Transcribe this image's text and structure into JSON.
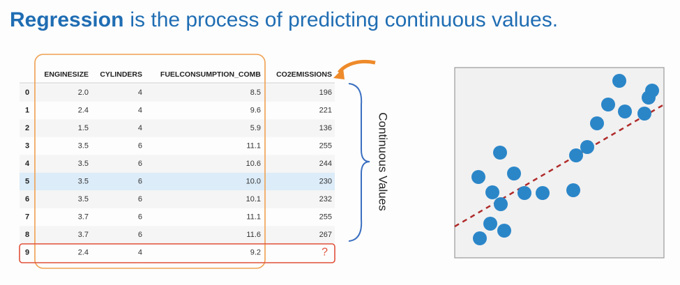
{
  "title": {
    "bold": "Regression",
    "rest": "is the process of predicting continuous values."
  },
  "table": {
    "headers": [
      "ENGINESIZE",
      "CYLINDERS",
      "FUELCONSUMPTION_COMB",
      "CO2EMISSIONS"
    ],
    "rows": [
      [
        "0",
        "2.0",
        "4",
        "8.5",
        "196"
      ],
      [
        "1",
        "2.4",
        "4",
        "9.6",
        "221"
      ],
      [
        "2",
        "1.5",
        "4",
        "5.9",
        "136"
      ],
      [
        "3",
        "3.5",
        "6",
        "11.1",
        "255"
      ],
      [
        "4",
        "3.5",
        "6",
        "10.6",
        "244"
      ],
      [
        "5",
        "3.5",
        "6",
        "10.0",
        "230"
      ],
      [
        "6",
        "3.5",
        "6",
        "10.1",
        "232"
      ],
      [
        "7",
        "3.7",
        "6",
        "11.1",
        "255"
      ],
      [
        "8",
        "3.7",
        "6",
        "11.6",
        "267"
      ],
      [
        "9",
        "2.4",
        "4",
        "9.2",
        "?"
      ]
    ]
  },
  "brace_label": "Continuous Values"
}
